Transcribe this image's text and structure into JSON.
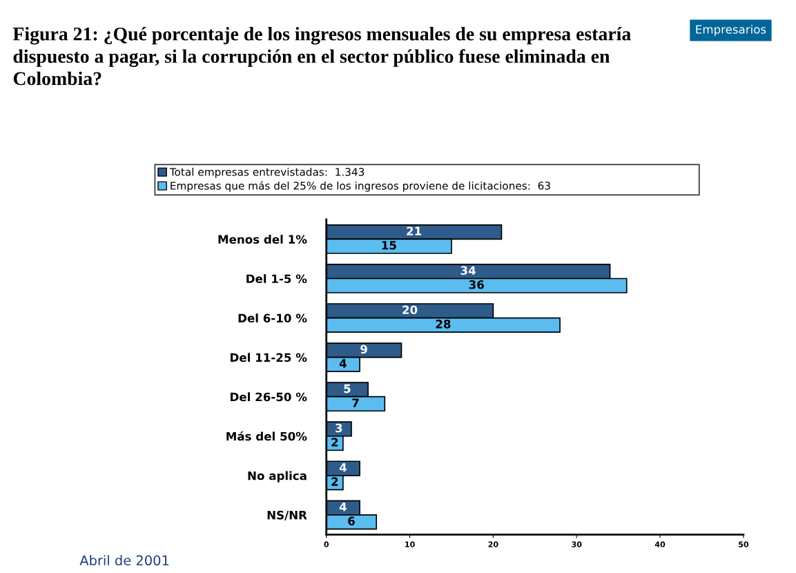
{
  "chart_data": {
    "type": "bar",
    "orientation": "horizontal",
    "title": "Figura 21: ¿Qué porcentaje de los ingresos mensuales de su empresa estaría dispuesto a pagar, si la corrupción en el sector público fuese eliminada en Colombia?",
    "annotations": [
      "Empresarios",
      "Abril de 2001"
    ],
    "categories": [
      "Menos del 1%",
      "Del 1-5 %",
      "Del 6-10 %",
      "Del 11-25 %",
      "Del 26-50 %",
      "Más del 50%",
      "No aplica",
      "NS/NR"
    ],
    "series": [
      {
        "name": "Total empresas entrevistadas:  1.343",
        "color": "#2e5b8a",
        "values": [
          21,
          34,
          20,
          9,
          5,
          3,
          4,
          4
        ]
      },
      {
        "name": "Empresas que más del 25% de los ingresos proviene de licitaciones:  63",
        "color": "#5bbcf0",
        "values": [
          15,
          36,
          28,
          4,
          7,
          2,
          2,
          6
        ]
      }
    ],
    "xlim": [
      0,
      50
    ],
    "xticks": [
      0,
      10,
      20,
      30,
      40,
      50
    ],
    "data_labels": true,
    "grid": false,
    "legend": "top"
  }
}
